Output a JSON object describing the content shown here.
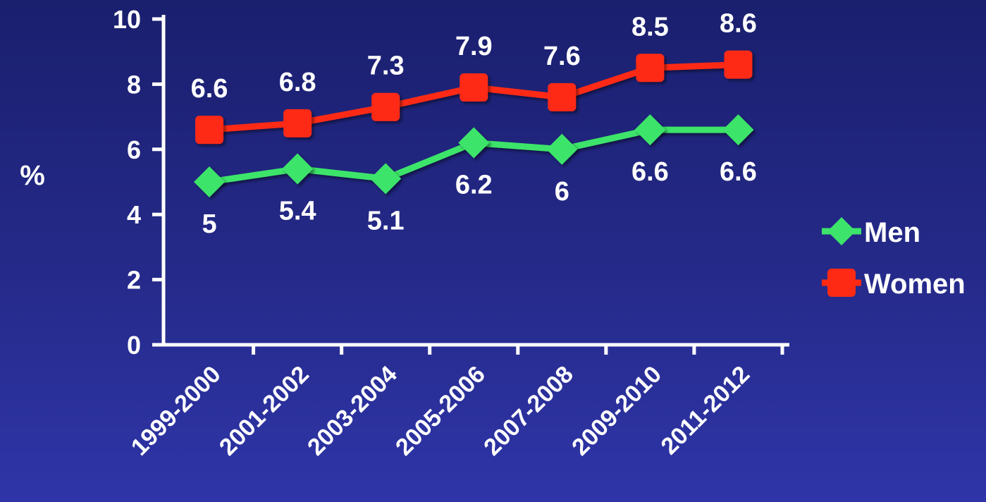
{
  "chart_data": {
    "type": "line",
    "title": "",
    "xlabel": "",
    "ylabel": "%",
    "ylim": [
      0,
      10
    ],
    "yticks": [
      0,
      2,
      4,
      6,
      8,
      10
    ],
    "grid": false,
    "legend_position": "right",
    "categories": [
      "1999-2000",
      "2001-2002",
      "2003-2004",
      "2005-2006",
      "2007-2008",
      "2009-2010",
      "2011-2012"
    ],
    "series": [
      {
        "name": "Men",
        "values": [
          5,
          5.4,
          5.1,
          6.2,
          6,
          6.6,
          6.6
        ],
        "color": "#3de46b",
        "marker": "diamond"
      },
      {
        "name": "Women",
        "values": [
          6.6,
          6.8,
          7.3,
          7.9,
          7.6,
          8.5,
          8.6
        ],
        "color": "#ff2a14",
        "marker": "square"
      }
    ]
  }
}
